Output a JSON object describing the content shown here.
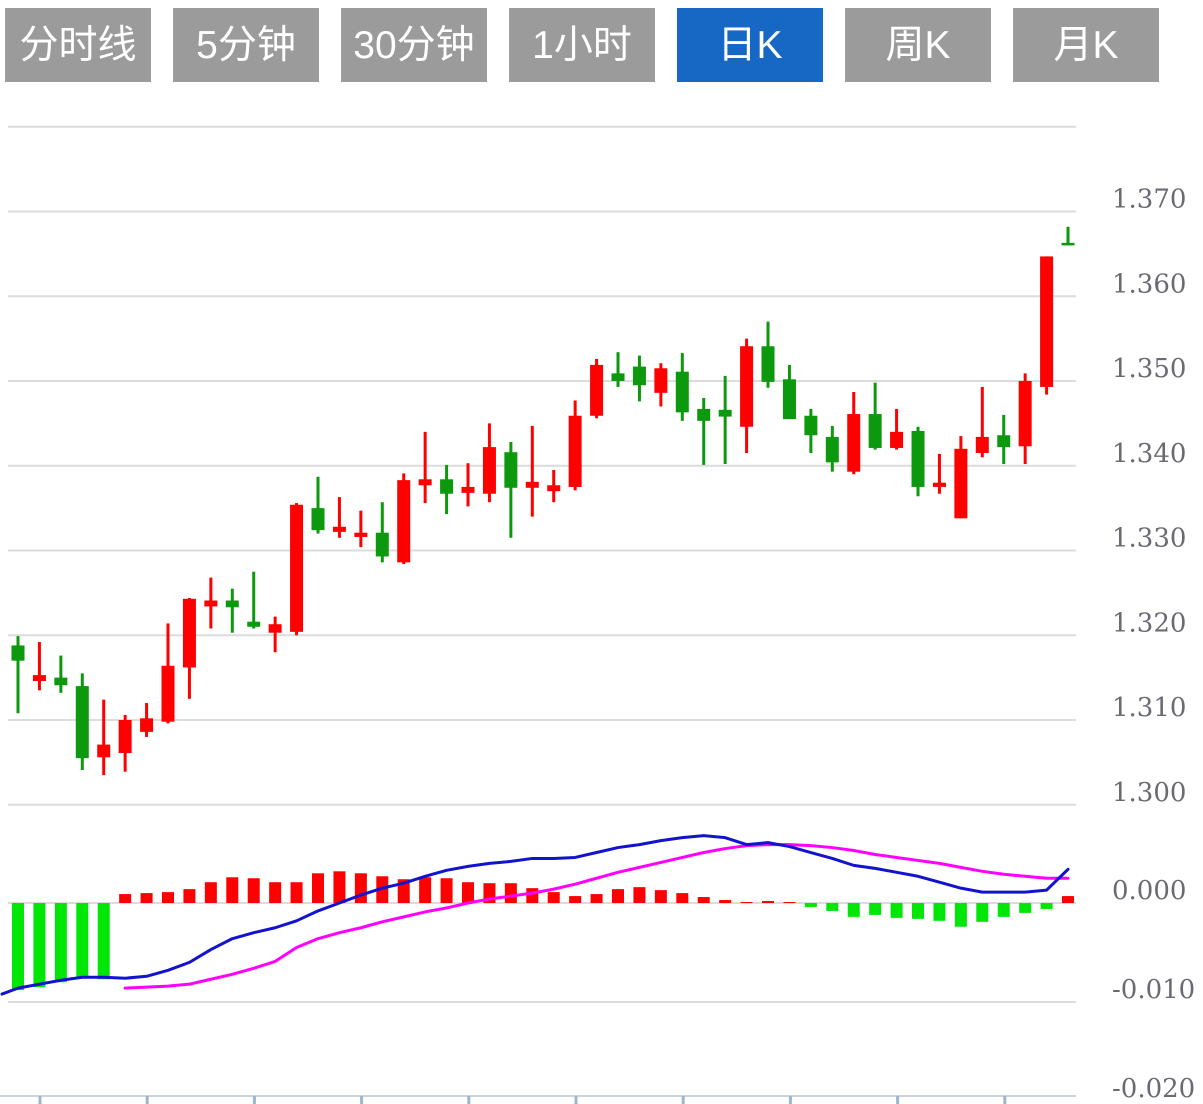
{
  "toolbar": {
    "tabs": [
      {
        "label": "分时线",
        "active": false
      },
      {
        "label": "5分钟",
        "active": false
      },
      {
        "label": "30分钟",
        "active": false
      },
      {
        "label": "1小时",
        "active": false
      },
      {
        "label": "日K",
        "active": true
      },
      {
        "label": "周K",
        "active": false
      },
      {
        "label": "月K",
        "active": false
      }
    ]
  },
  "colors": {
    "up": "#fe0000",
    "down": "#0d990d",
    "hist_up": "#fe0000",
    "hist_down": "#00e607",
    "dif_line": "#1212cf",
    "dea_line": "#ff00ff",
    "grid": "#dcdcdc",
    "axis_label": "#6a6a72",
    "x_axis": "#ccd3dc",
    "x_tick": "#9fb6c9",
    "tab_bg": "#9b9b9b",
    "tab_active_bg": "#1768c4",
    "tab_text": "#ffffff"
  },
  "chart_data": {
    "type": "candlestick_with_macd",
    "title": "",
    "legend_position": "none",
    "grid": true,
    "price_axis": {
      "side": "right",
      "tick_labels": [
        "1.370",
        "1.360",
        "1.350",
        "1.340",
        "1.330",
        "1.320",
        "1.310",
        "1.300"
      ],
      "tick_values": [
        1.37,
        1.36,
        1.35,
        1.34,
        1.33,
        1.32,
        1.31,
        1.3
      ],
      "grid_values": [
        1.38,
        1.37,
        1.36,
        1.35,
        1.34,
        1.33,
        1.32,
        1.31,
        1.3
      ],
      "range": [
        1.298,
        1.38
      ]
    },
    "macd_axis": {
      "side": "right",
      "tick_labels": [
        "0.000",
        "-0.010",
        "-0.020"
      ],
      "tick_values": [
        0.0,
        -0.01,
        -0.02
      ],
      "grid_values": [
        0.0,
        -0.01
      ],
      "range": [
        -0.02,
        0.011
      ]
    },
    "candles_ohlc": [
      [
        1.3188,
        1.3199,
        1.3108,
        1.317
      ],
      [
        1.3146,
        1.3192,
        1.3135,
        1.3153
      ],
      [
        1.315,
        1.3176,
        1.3132,
        1.3141
      ],
      [
        1.314,
        1.3155,
        1.3041,
        1.3055
      ],
      [
        1.3056,
        1.3124,
        1.3035,
        1.3071
      ],
      [
        1.3061,
        1.3106,
        1.3039,
        1.31
      ],
      [
        1.3086,
        1.312,
        1.308,
        1.3102
      ],
      [
        1.3098,
        1.3214,
        1.3096,
        1.3164
      ],
      [
        1.3162,
        1.3244,
        1.3125,
        1.3243
      ],
      [
        1.3234,
        1.3268,
        1.3208,
        1.3241
      ],
      [
        1.3241,
        1.3255,
        1.3203,
        1.3233
      ],
      [
        1.3216,
        1.3275,
        1.3208,
        1.321
      ],
      [
        1.3203,
        1.3222,
        1.318,
        1.3213
      ],
      [
        1.3204,
        1.3356,
        1.32,
        1.3354
      ],
      [
        1.335,
        1.3387,
        1.332,
        1.3324
      ],
      [
        1.3322,
        1.3363,
        1.3315,
        1.3328
      ],
      [
        1.3316,
        1.3347,
        1.3304,
        1.3321
      ],
      [
        1.3321,
        1.3357,
        1.3286,
        1.3293
      ],
      [
        1.3286,
        1.3391,
        1.3284,
        1.3383
      ],
      [
        1.3377,
        1.344,
        1.3356,
        1.3384
      ],
      [
        1.3384,
        1.3401,
        1.3343,
        1.3367
      ],
      [
        1.3368,
        1.3403,
        1.3352,
        1.3375
      ],
      [
        1.3367,
        1.345,
        1.3357,
        1.3422
      ],
      [
        1.3416,
        1.3428,
        1.3315,
        1.3374
      ],
      [
        1.3374,
        1.3447,
        1.334,
        1.3381
      ],
      [
        1.337,
        1.3395,
        1.3357,
        1.3377
      ],
      [
        1.3375,
        1.3477,
        1.3371,
        1.3459
      ],
      [
        1.3459,
        1.3526,
        1.3456,
        1.3519
      ],
      [
        1.3509,
        1.3534,
        1.3493,
        1.35
      ],
      [
        1.3517,
        1.353,
        1.3476,
        1.3495
      ],
      [
        1.3486,
        1.3521,
        1.347,
        1.3515
      ],
      [
        1.3511,
        1.3533,
        1.3453,
        1.3463
      ],
      [
        1.3467,
        1.348,
        1.3401,
        1.3453
      ],
      [
        1.3466,
        1.3506,
        1.3402,
        1.3458
      ],
      [
        1.3446,
        1.355,
        1.3415,
        1.3541
      ],
      [
        1.3541,
        1.357,
        1.3492,
        1.3499
      ],
      [
        1.3502,
        1.3519,
        1.3455,
        1.3455
      ],
      [
        1.3459,
        1.3467,
        1.3415,
        1.3436
      ],
      [
        1.3434,
        1.3447,
        1.3393,
        1.3404
      ],
      [
        1.3393,
        1.3487,
        1.339,
        1.3461
      ],
      [
        1.3461,
        1.3498,
        1.3419,
        1.3421
      ],
      [
        1.3421,
        1.3467,
        1.3419,
        1.344
      ],
      [
        1.3441,
        1.3446,
        1.3364,
        1.3375
      ],
      [
        1.3375,
        1.3414,
        1.3367,
        1.338
      ],
      [
        1.3338,
        1.3435,
        1.3338,
        1.342
      ],
      [
        1.3415,
        1.3493,
        1.341,
        1.3434
      ],
      [
        1.3436,
        1.346,
        1.3402,
        1.3422
      ],
      [
        1.3423,
        1.3509,
        1.3402,
        1.35
      ],
      [
        1.3493,
        1.3647,
        1.3484,
        1.3647
      ],
      [
        1.3663,
        1.3682,
        1.366,
        1.366
      ]
    ],
    "macd": {
      "histogram": [
        -0.0088,
        -0.0085,
        -0.008,
        -0.0076,
        -0.0077,
        0.0009,
        0.001,
        0.0011,
        0.0014,
        0.0021,
        0.0026,
        0.0025,
        0.0021,
        0.0021,
        0.003,
        0.0032,
        0.003,
        0.0027,
        0.0024,
        0.0026,
        0.0025,
        0.0021,
        0.002,
        0.002,
        0.0015,
        0.0011,
        0.0007,
        0.0009,
        0.0014,
        0.0016,
        0.0013,
        0.001,
        0.0006,
        0.0003,
        0.0001,
        0.0002,
        0.0001,
        -0.0004,
        -0.0008,
        -0.0014,
        -0.0012,
        -0.0015,
        -0.0016,
        -0.0018,
        -0.0024,
        -0.0019,
        -0.0014,
        -0.001,
        -0.0006,
        0.0007
      ],
      "dif_edge_start": -0.0092,
      "dif": [
        -0.0086,
        -0.0082,
        -0.0078,
        -0.0075,
        -0.0075,
        -0.0076,
        -0.0074,
        -0.0068,
        -0.006,
        -0.0047,
        -0.0036,
        -0.003,
        -0.0025,
        -0.0018,
        -0.0008,
        0.0,
        0.0008,
        0.0015,
        0.002,
        0.0027,
        0.0033,
        0.0037,
        0.004,
        0.0042,
        0.0045,
        0.0045,
        0.0046,
        0.0051,
        0.0056,
        0.0059,
        0.0063,
        0.0066,
        0.0068,
        0.0066,
        0.0059,
        0.0061,
        0.0057,
        0.0051,
        0.0045,
        0.0038,
        0.0035,
        0.0031,
        0.0027,
        0.0021,
        0.0015,
        0.0011,
        0.0011,
        0.0011,
        0.0013,
        0.0034
      ],
      "dea": [
        null,
        null,
        null,
        null,
        null,
        -0.0086,
        -0.0085,
        -0.0084,
        -0.0082,
        -0.0077,
        -0.0072,
        -0.0066,
        -0.0059,
        -0.0045,
        -0.0036,
        -0.003,
        -0.0025,
        -0.0019,
        -0.0014,
        -0.0009,
        -0.0005,
        0.0,
        0.0004,
        0.0007,
        0.001,
        0.0014,
        0.0019,
        0.0025,
        0.0031,
        0.0036,
        0.0041,
        0.0046,
        0.0051,
        0.0055,
        0.0058,
        0.0059,
        0.0059,
        0.0058,
        0.0056,
        0.0053,
        0.0049,
        0.0046,
        0.0043,
        0.004,
        0.0036,
        0.0032,
        0.0029,
        0.0027,
        0.0025,
        0.0025
      ]
    }
  }
}
